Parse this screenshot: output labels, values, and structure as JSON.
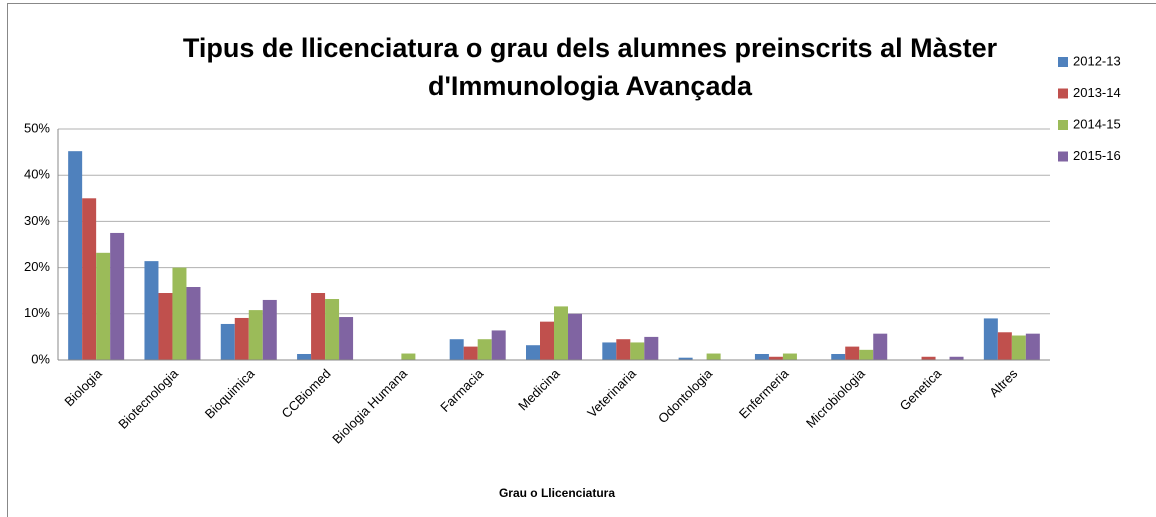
{
  "chart_data": {
    "type": "bar",
    "title": [
      "Tipus de llicenciatura o grau dels alumnes preinscrits al Màster",
      "d'Immunologia Avançada"
    ],
    "x_label": "Grau o Llicenciatura",
    "categories": [
      "Biologia",
      "Biotecnologia",
      "Bioquimica",
      "CCBiomed",
      "Biologia Humana",
      "Farmacia",
      "Medicina",
      "Veterinaria",
      "Odontologia",
      "Enfermeria",
      "Microbiologia",
      "Genetica",
      "Altres"
    ],
    "series": [
      {
        "name": "2012-13",
        "color": "#4f81bd",
        "values": [
          45.2,
          21.4,
          7.8,
          1.3,
          0,
          4.5,
          3.2,
          3.8,
          0.5,
          1.3,
          1.3,
          0,
          9
        ]
      },
      {
        "name": "2013-14",
        "color": "#c0504d",
        "values": [
          35,
          14.5,
          9.1,
          14.5,
          0,
          2.9,
          8.3,
          4.5,
          0,
          0.7,
          2.9,
          0.7,
          6
        ]
      },
      {
        "name": "2014-15",
        "color": "#9bbb59",
        "values": [
          23.2,
          20,
          10.8,
          13.2,
          1.4,
          4.5,
          11.6,
          3.8,
          1.4,
          1.4,
          2.2,
          0,
          5.3
        ]
      },
      {
        "name": "2015-16",
        "color": "#8064a2",
        "values": [
          27.5,
          15.8,
          13,
          9.3,
          0,
          6.4,
          10,
          5,
          0,
          0,
          5.7,
          0.7,
          5.7
        ]
      }
    ],
    "ylim": [
      0,
      50
    ],
    "yticks": [
      {
        "value": 0,
        "label": "0%"
      },
      {
        "value": 10,
        "label": "10%"
      },
      {
        "value": 20,
        "label": "20%"
      },
      {
        "value": 30,
        "label": "30%"
      },
      {
        "value": 40,
        "label": "40%"
      },
      {
        "value": 50,
        "label": "50%"
      }
    ],
    "grid": true,
    "legend": "right"
  }
}
